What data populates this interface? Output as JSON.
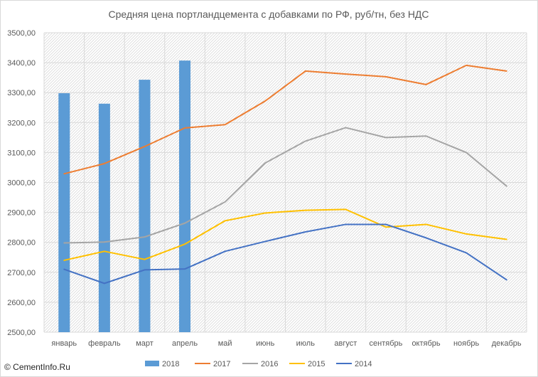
{
  "chart_data": {
    "type": "bar+line",
    "title": "Средняя цена портландцемента с добавками по РФ, руб/тн, без НДС",
    "categories": [
      "январь",
      "февраль",
      "март",
      "апрель",
      "май",
      "июнь",
      "июль",
      "август",
      "сентябрь",
      "октябрь",
      "ноябрь",
      "декабрь"
    ],
    "ylim": [
      2500,
      3500
    ],
    "yticks": [
      "2500,00",
      "2600,00",
      "2700,00",
      "2800,00",
      "2900,00",
      "3000,00",
      "3100,00",
      "3200,00",
      "3300,00",
      "3400,00",
      "3500,00"
    ],
    "grid": true,
    "legend_position": "bottom",
    "series": [
      {
        "name": "2018",
        "type": "bar",
        "color": "#5b9bd5",
        "values": [
          3298,
          3263,
          3343,
          3407,
          null,
          null,
          null,
          null,
          null,
          null,
          null,
          null
        ]
      },
      {
        "name": "2017",
        "type": "line",
        "color": "#ed7d31",
        "values": [
          3029,
          3063,
          3120,
          3182,
          3193,
          3272,
          3372,
          3362,
          3353,
          3327,
          3391,
          3372
        ]
      },
      {
        "name": "2016",
        "type": "line",
        "color": "#a5a5a5",
        "values": [
          2798,
          2801,
          2818,
          2864,
          2935,
          3065,
          3138,
          3183,
          3150,
          3155,
          3100,
          2988
        ]
      },
      {
        "name": "2015",
        "type": "line",
        "color": "#ffc000",
        "values": [
          2740,
          2770,
          2743,
          2794,
          2872,
          2898,
          2907,
          2910,
          2851,
          2860,
          2828,
          2810
        ]
      },
      {
        "name": "2014",
        "type": "line",
        "color": "#4472c4",
        "values": [
          2710,
          2663,
          2708,
          2711,
          2770,
          2803,
          2835,
          2860,
          2860,
          2815,
          2765,
          2675
        ]
      }
    ]
  },
  "watermark": "© CementInfo.Ru",
  "colors": {
    "grid": "#d9d9d9",
    "hatch": "#d9d9d9",
    "text": "#595959"
  }
}
